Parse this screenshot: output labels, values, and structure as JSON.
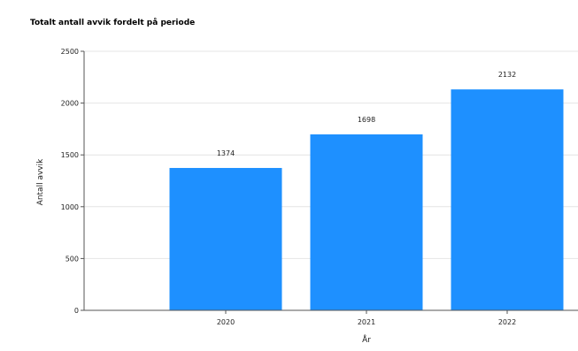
{
  "chart_data": {
    "type": "bar",
    "title": "Totalt antall avvik fordelt på periode",
    "xlabel": "År",
    "ylabel": "Antall avvik",
    "categories": [
      "2020",
      "2021",
      "2022"
    ],
    "values": [
      1374,
      1698,
      2132
    ],
    "ylim": [
      0,
      2500
    ],
    "yticks": [
      "0",
      "500",
      "1000",
      "1500",
      "2000",
      "2500"
    ],
    "data_labels": [
      "1374",
      "1698",
      "2132"
    ],
    "grid": true,
    "bar_color": "#1e90ff"
  }
}
